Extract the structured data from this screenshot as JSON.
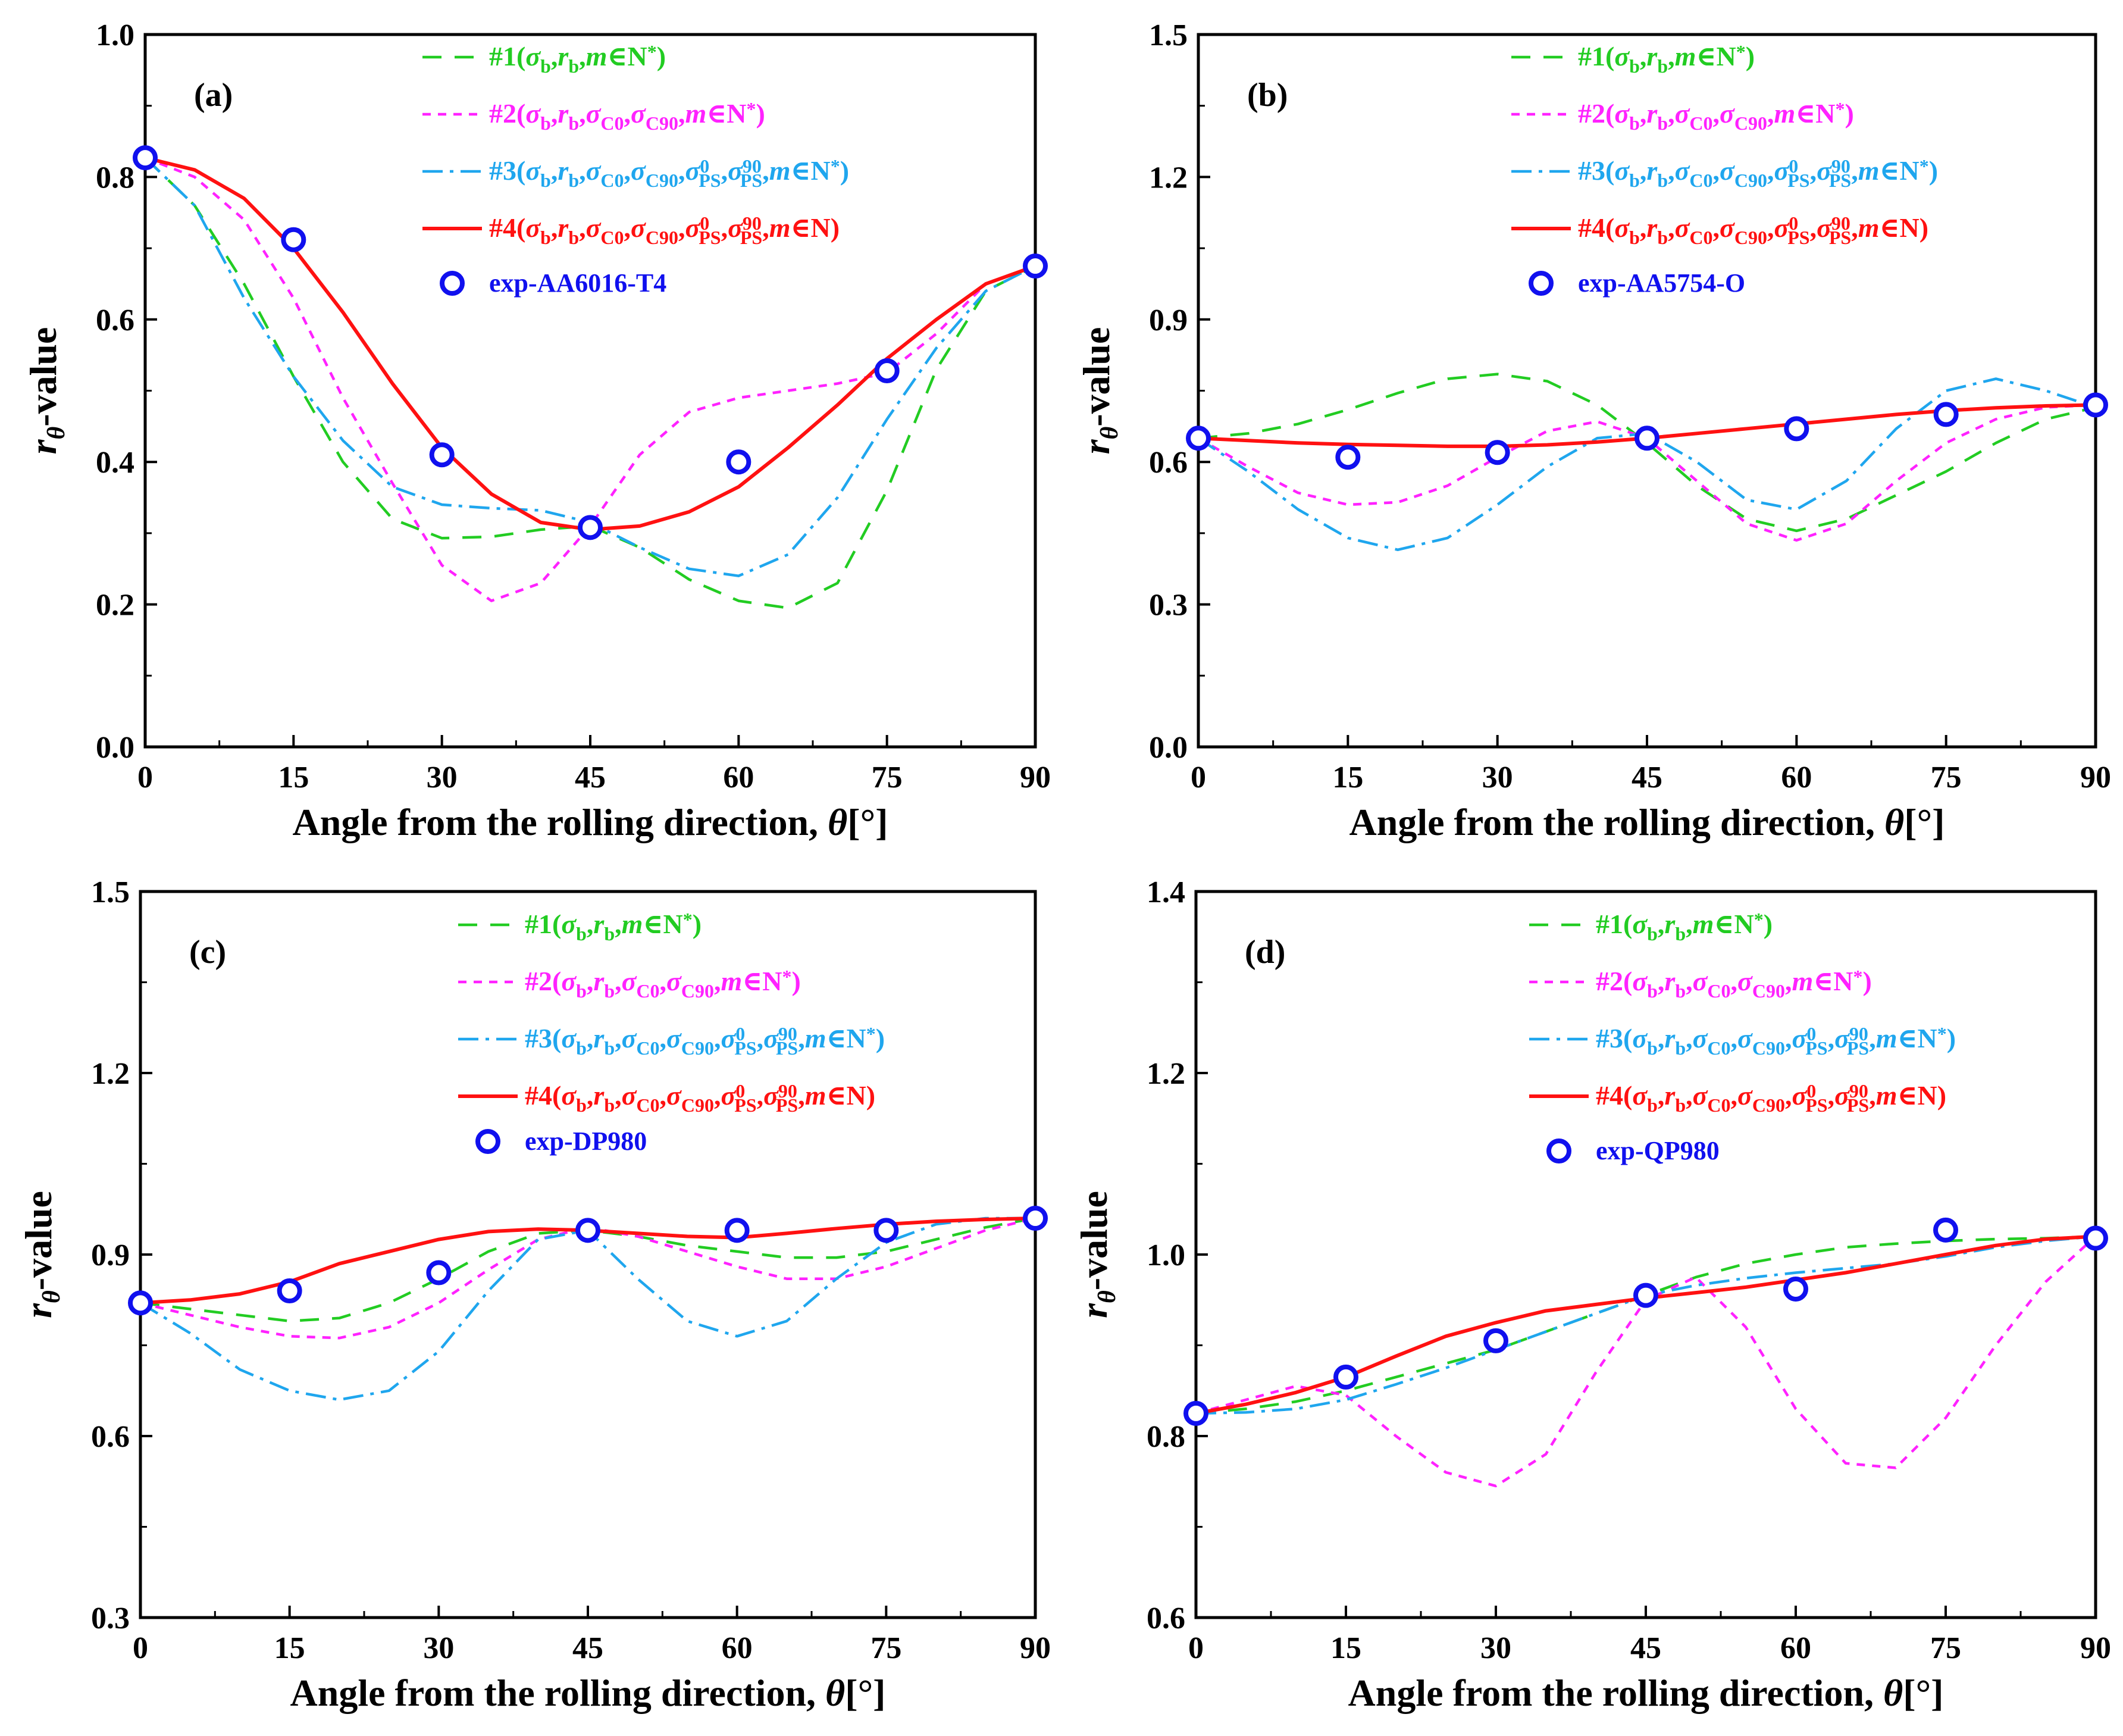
{
  "shared": {
    "xlabel_prefix": "Angle from the rolling direction, ",
    "xlabel_var": "θ",
    "xlabel_unit": "[°]",
    "ylabel_var": "r",
    "ylabel_sub": "θ",
    "ylabel_suffix": "-value",
    "colors": {
      "s1": "#22cc22",
      "s2": "#ff22ff",
      "s3": "#1fa6ee",
      "s4": "#ff1111",
      "exp": "#1010ee"
    }
  },
  "chart_data": [
    {
      "type": "line",
      "panel": "(a)",
      "xlim": [
        0,
        90
      ],
      "ylim": [
        0.0,
        1.0
      ],
      "xticks": [
        "0",
        "15",
        "30",
        "45",
        "60",
        "75",
        "90"
      ],
      "yticks": [
        "0.0",
        "0.2",
        "0.4",
        "0.6",
        "0.8",
        "1.0"
      ],
      "xlabel": "Angle from the rolling direction, θ[°]",
      "ylabel": "rθ-value",
      "legend": [
        "#1(σb,rb,m∈N*)",
        "#2(σb,rb,σC0,σC90,m∈N*)",
        "#3(σb,rb,σC0,σC90,σ0PS,σ90PS,m∈N*)",
        "#4(σb,rb,σC0,σC90,σ0PS,σ90PS,m∈N)",
        "exp-AA6016-T4"
      ],
      "exp_label": "exp-AA6016-T4",
      "series": [
        {
          "name": "#1",
          "x": [
            0,
            5,
            10,
            15,
            20,
            25,
            30,
            35,
            40,
            45,
            50,
            55,
            60,
            65,
            70,
            75,
            80,
            85,
            90
          ],
          "y": [
            0.827,
            0.76,
            0.65,
            0.52,
            0.4,
            0.32,
            0.293,
            0.295,
            0.305,
            0.31,
            0.28,
            0.235,
            0.205,
            0.195,
            0.23,
            0.36,
            0.53,
            0.64,
            0.675
          ]
        },
        {
          "name": "#2",
          "x": [
            0,
            5,
            10,
            15,
            20,
            25,
            30,
            35,
            40,
            45,
            50,
            55,
            60,
            65,
            70,
            75,
            80,
            85,
            90
          ],
          "y": [
            0.827,
            0.8,
            0.74,
            0.63,
            0.49,
            0.37,
            0.255,
            0.205,
            0.23,
            0.31,
            0.41,
            0.47,
            0.49,
            0.5,
            0.51,
            0.525,
            0.58,
            0.65,
            0.675
          ]
        },
        {
          "name": "#3",
          "x": [
            0,
            5,
            10,
            15,
            20,
            25,
            30,
            35,
            40,
            45,
            50,
            55,
            60,
            65,
            70,
            75,
            80,
            85,
            90
          ],
          "y": [
            0.827,
            0.76,
            0.63,
            0.52,
            0.43,
            0.365,
            0.34,
            0.335,
            0.332,
            0.315,
            0.28,
            0.25,
            0.24,
            0.27,
            0.35,
            0.46,
            0.56,
            0.64,
            0.675
          ]
        },
        {
          "name": "#4",
          "x": [
            0,
            5,
            10,
            15,
            20,
            25,
            30,
            35,
            40,
            45,
            50,
            55,
            60,
            65,
            70,
            75,
            80,
            85,
            90
          ],
          "y": [
            0.827,
            0.81,
            0.77,
            0.7,
            0.61,
            0.51,
            0.42,
            0.355,
            0.315,
            0.305,
            0.31,
            0.33,
            0.365,
            0.42,
            0.48,
            0.545,
            0.6,
            0.65,
            0.675
          ]
        },
        {
          "name": "exp",
          "x": [
            0,
            15,
            30,
            45,
            60,
            75,
            90
          ],
          "y": [
            0.827,
            0.712,
            0.41,
            0.308,
            0.4,
            0.528,
            0.675
          ]
        }
      ]
    },
    {
      "type": "line",
      "panel": "(b)",
      "xlim": [
        0,
        90
      ],
      "ylim": [
        0.0,
        1.5
      ],
      "xticks": [
        "0",
        "15",
        "30",
        "45",
        "60",
        "75",
        "90"
      ],
      "yticks": [
        "0.0",
        "0.3",
        "0.6",
        "0.9",
        "1.2",
        "1.5"
      ],
      "xlabel": "Angle from the rolling direction, θ[°]",
      "ylabel": "rθ-value",
      "legend": [
        "#1(σb,rb,m∈N*)",
        "#2(σb,rb,σC0,σC90,m∈N*)",
        "#3(σb,rb,σC0,σC90,σ0PS,σ90PS,m∈N*)",
        "#4(σb,rb,σC0,σC90,σ0PS,σ90PS,m∈N)",
        "exp-AA5754-O"
      ],
      "exp_label": "exp-AA5754-O",
      "series": [
        {
          "name": "#1",
          "x": [
            0,
            5,
            10,
            15,
            20,
            25,
            30,
            35,
            40,
            45,
            50,
            55,
            60,
            65,
            70,
            75,
            80,
            85,
            90
          ],
          "y": [
            0.65,
            0.66,
            0.68,
            0.71,
            0.745,
            0.775,
            0.785,
            0.77,
            0.72,
            0.64,
            0.55,
            0.48,
            0.455,
            0.48,
            0.53,
            0.58,
            0.64,
            0.69,
            0.715
          ]
        },
        {
          "name": "#2",
          "x": [
            0,
            5,
            10,
            15,
            20,
            25,
            30,
            35,
            40,
            45,
            50,
            55,
            60,
            65,
            70,
            75,
            80,
            85,
            90
          ],
          "y": [
            0.65,
            0.59,
            0.535,
            0.51,
            0.515,
            0.55,
            0.61,
            0.665,
            0.685,
            0.65,
            0.56,
            0.47,
            0.435,
            0.47,
            0.56,
            0.64,
            0.69,
            0.715,
            0.72
          ]
        },
        {
          "name": "#3",
          "x": [
            0,
            5,
            10,
            15,
            20,
            25,
            30,
            35,
            40,
            45,
            50,
            55,
            60,
            65,
            70,
            75,
            80,
            85,
            90
          ],
          "y": [
            0.65,
            0.58,
            0.5,
            0.44,
            0.415,
            0.44,
            0.51,
            0.59,
            0.65,
            0.66,
            0.6,
            0.52,
            0.5,
            0.56,
            0.67,
            0.75,
            0.775,
            0.75,
            0.715
          ]
        },
        {
          "name": "#4",
          "x": [
            0,
            5,
            10,
            15,
            20,
            25,
            30,
            35,
            40,
            45,
            50,
            55,
            60,
            65,
            70,
            75,
            80,
            85,
            90
          ],
          "y": [
            0.65,
            0.645,
            0.64,
            0.637,
            0.635,
            0.633,
            0.633,
            0.636,
            0.642,
            0.65,
            0.66,
            0.67,
            0.68,
            0.69,
            0.7,
            0.708,
            0.714,
            0.718,
            0.72
          ]
        },
        {
          "name": "exp",
          "x": [
            0,
            15,
            30,
            45,
            60,
            75,
            90
          ],
          "y": [
            0.65,
            0.61,
            0.62,
            0.65,
            0.67,
            0.7,
            0.72
          ]
        }
      ]
    },
    {
      "type": "line",
      "panel": "(c)",
      "xlim": [
        0,
        90
      ],
      "ylim": [
        0.3,
        1.5
      ],
      "xticks": [
        "0",
        "15",
        "30",
        "45",
        "60",
        "75",
        "90"
      ],
      "yticks": [
        "0.3",
        "0.6",
        "0.9",
        "1.2",
        "1.5"
      ],
      "xlabel": "Angle from the rolling direction, θ[°]",
      "ylabel": "rθ-value",
      "legend": [
        "#1(σb,rb,m∈N*)",
        "#2(σb,rb,σC0,σC90,m∈N*)",
        "#3(σb,rb,σC0,σC90,σ0PS,σ90PS,m∈N*)",
        "#4(σb,rb,σC0,σC90,σ0PS,σ90PS,m∈N)",
        "exp-DP980"
      ],
      "exp_label": "exp-DP980",
      "series": [
        {
          "name": "#1",
          "x": [
            0,
            5,
            10,
            15,
            20,
            25,
            30,
            35,
            40,
            45,
            50,
            55,
            60,
            65,
            70,
            75,
            80,
            85,
            90
          ],
          "y": [
            0.82,
            0.81,
            0.8,
            0.79,
            0.795,
            0.82,
            0.86,
            0.905,
            0.935,
            0.94,
            0.93,
            0.915,
            0.905,
            0.895,
            0.895,
            0.905,
            0.925,
            0.945,
            0.96
          ]
        },
        {
          "name": "#2",
          "x": [
            0,
            5,
            10,
            15,
            20,
            25,
            30,
            35,
            40,
            45,
            50,
            55,
            60,
            65,
            70,
            75,
            80,
            85,
            90
          ],
          "y": [
            0.82,
            0.8,
            0.78,
            0.765,
            0.762,
            0.78,
            0.82,
            0.875,
            0.925,
            0.945,
            0.93,
            0.905,
            0.88,
            0.86,
            0.86,
            0.88,
            0.91,
            0.94,
            0.96
          ]
        },
        {
          "name": "#3",
          "x": [
            0,
            5,
            10,
            15,
            20,
            25,
            30,
            35,
            40,
            45,
            50,
            55,
            60,
            65,
            70,
            75,
            80,
            85,
            90
          ],
          "y": [
            0.82,
            0.77,
            0.71,
            0.675,
            0.66,
            0.675,
            0.74,
            0.84,
            0.925,
            0.94,
            0.86,
            0.79,
            0.765,
            0.79,
            0.86,
            0.92,
            0.95,
            0.96,
            0.96
          ]
        },
        {
          "name": "#4",
          "x": [
            0,
            5,
            10,
            15,
            20,
            25,
            30,
            35,
            40,
            45,
            50,
            55,
            60,
            65,
            70,
            75,
            80,
            85,
            90
          ],
          "y": [
            0.82,
            0.825,
            0.835,
            0.855,
            0.885,
            0.905,
            0.925,
            0.938,
            0.942,
            0.94,
            0.935,
            0.93,
            0.928,
            0.935,
            0.943,
            0.95,
            0.955,
            0.958,
            0.96
          ]
        },
        {
          "name": "exp",
          "x": [
            0,
            15,
            30,
            45,
            60,
            75,
            90
          ],
          "y": [
            0.82,
            0.84,
            0.87,
            0.94,
            0.94,
            0.94,
            0.96
          ]
        }
      ]
    },
    {
      "type": "line",
      "panel": "(d)",
      "xlim": [
        0,
        90
      ],
      "ylim": [
        0.6,
        1.4
      ],
      "xticks": [
        "0",
        "15",
        "30",
        "45",
        "60",
        "75",
        "90"
      ],
      "yticks": [
        "0.6",
        "0.8",
        "1.0",
        "1.2",
        "1.4"
      ],
      "xlabel": "Angle from the rolling direction, θ[°]",
      "ylabel": "rθ-value",
      "legend": [
        "#1(σb,rb,m∈N*)",
        "#2(σb,rb,σC0,σC90,m∈N*)",
        "#3(σb,rb,σC0,σC90,σ0PS,σ90PS,m∈N*)",
        "#4(σb,rb,σC0,σC90,σ0PS,σ90PS,m∈N)",
        "exp-QP980"
      ],
      "exp_label": "exp-QP980",
      "series": [
        {
          "name": "#1",
          "x": [
            0,
            5,
            10,
            15,
            20,
            25,
            30,
            35,
            40,
            45,
            50,
            55,
            60,
            65,
            70,
            75,
            80,
            85,
            90
          ],
          "y": [
            0.825,
            0.83,
            0.838,
            0.85,
            0.865,
            0.88,
            0.895,
            0.915,
            0.935,
            0.955,
            0.975,
            0.99,
            1.0,
            1.008,
            1.012,
            1.015,
            1.017,
            1.018,
            1.02
          ]
        },
        {
          "name": "#2",
          "x": [
            0,
            5,
            10,
            15,
            20,
            25,
            30,
            35,
            40,
            45,
            50,
            55,
            60,
            65,
            70,
            75,
            80,
            85,
            90
          ],
          "y": [
            0.825,
            0.84,
            0.855,
            0.845,
            0.8,
            0.76,
            0.745,
            0.78,
            0.87,
            0.95,
            0.975,
            0.92,
            0.83,
            0.77,
            0.765,
            0.82,
            0.9,
            0.97,
            1.02
          ]
        },
        {
          "name": "#3",
          "x": [
            0,
            5,
            10,
            15,
            20,
            25,
            30,
            35,
            40,
            45,
            50,
            55,
            60,
            65,
            70,
            75,
            80,
            85,
            90
          ],
          "y": [
            0.825,
            0.826,
            0.83,
            0.84,
            0.857,
            0.875,
            0.895,
            0.915,
            0.935,
            0.955,
            0.966,
            0.974,
            0.98,
            0.985,
            0.99,
            0.998,
            1.008,
            1.015,
            1.02
          ]
        },
        {
          "name": "#4",
          "x": [
            0,
            5,
            10,
            15,
            20,
            25,
            30,
            35,
            40,
            45,
            50,
            55,
            60,
            65,
            70,
            75,
            80,
            85,
            90
          ],
          "y": [
            0.825,
            0.835,
            0.848,
            0.865,
            0.888,
            0.91,
            0.925,
            0.938,
            0.945,
            0.952,
            0.958,
            0.964,
            0.972,
            0.98,
            0.99,
            1.0,
            1.01,
            1.017,
            1.02
          ]
        },
        {
          "name": "exp",
          "x": [
            0,
            15,
            30,
            45,
            60,
            75,
            90
          ],
          "y": [
            0.825,
            0.865,
            0.905,
            0.955,
            0.962,
            1.027,
            1.018
          ]
        }
      ]
    }
  ]
}
